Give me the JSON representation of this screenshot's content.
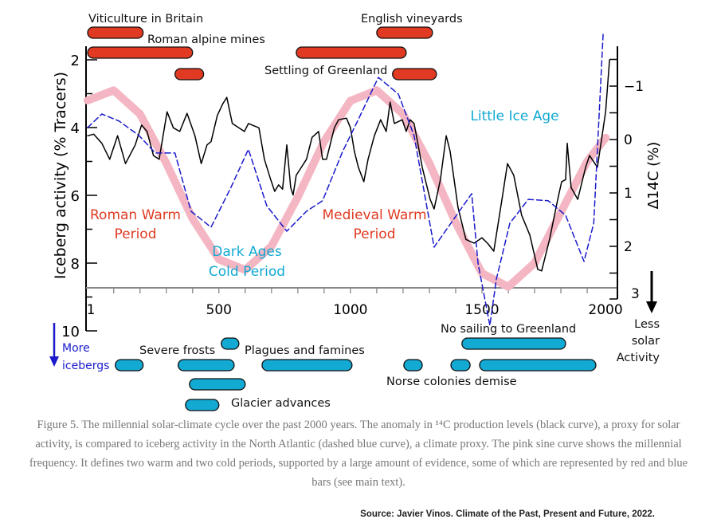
{
  "chart_data": {
    "type": "line",
    "xlabel": "",
    "ylabel_left": "Iceberg activity (% Tracers)",
    "ylabel_right": "Δ14C (%)",
    "xlim": [
      1,
      2000
    ],
    "ylim_left": [
      10,
      1.6
    ],
    "ylim_right": [
      3,
      -1.75
    ],
    "x_ticks": [
      "1",
      "500",
      "1000",
      "1500",
      "2000"
    ],
    "y_left_ticks": [
      "2",
      "4",
      "6",
      "8",
      "10"
    ],
    "y_right_ticks": [
      "−1",
      "0",
      "1",
      "2",
      "3"
    ],
    "grid": false,
    "colors": {
      "solar": "#000000",
      "iceberg": "#1a1acc",
      "sine": "#f4b6c2",
      "warm": "#e03a22",
      "cold": "#12a9d3"
    },
    "series": [
      {
        "axis": "right",
        "style": "solid-black",
        "x": [
          1,
          24,
          55,
          85,
          115,
          145,
          182,
          206,
          227,
          251,
          273,
          303,
          327,
          351,
          379,
          409,
          433,
          455,
          470,
          494,
          515,
          530,
          551,
          597,
          612,
          652,
          673,
          697,
          712,
          727,
          742,
          758,
          773,
          782,
          794,
          833,
          854,
          879,
          894,
          909,
          939,
          955,
          985,
          1000,
          1015,
          1030,
          1051,
          1067,
          1091,
          1115,
          1136,
          1151,
          1167,
          1197,
          1212,
          1227,
          1242,
          1273,
          1303,
          1318,
          1342,
          1364,
          1379,
          1409,
          1439,
          1470,
          1500,
          1521,
          1545,
          1576,
          1597,
          1621,
          1651,
          1682,
          1712,
          1727,
          1757,
          1788,
          1803,
          1818,
          1824,
          1839,
          1864,
          1894,
          1909,
          1939,
          1970,
          1985
        ],
        "y": [
          -0.07,
          -0.1,
          0.07,
          0.37,
          -0.07,
          0.45,
          0.1,
          -0.27,
          -0.15,
          0.3,
          0.37,
          -0.52,
          -0.22,
          -0.15,
          -0.49,
          -0.07,
          0.45,
          0.1,
          0.04,
          -0.45,
          -0.67,
          -0.79,
          -0.3,
          -0.15,
          -0.3,
          -0.22,
          0.37,
          0.75,
          0.97,
          0.85,
          0.93,
          0.1,
          0.9,
          1.04,
          0.67,
          0.37,
          -0.04,
          -0.15,
          0.37,
          0.37,
          -0.22,
          -0.37,
          -0.4,
          -0.22,
          0.22,
          0.52,
          0.79,
          0.37,
          -0.07,
          -0.37,
          -0.15,
          -0.7,
          -0.3,
          -0.37,
          -0.15,
          -0.37,
          -0.3,
          0.52,
          1.12,
          1.3,
          0.75,
          -0.07,
          0.22,
          1.27,
          1.87,
          1.94,
          1.84,
          1.94,
          2.09,
          1.12,
          0.45,
          0.67,
          1.42,
          1.79,
          2.43,
          2.46,
          1.87,
          1.12,
          0.79,
          0.75,
          0.07,
          0.9,
          1.12,
          0.52,
          0.3,
          0.52,
          -0.52,
          -1.49
        ]
      },
      {
        "axis": "left",
        "style": "dashed-blue",
        "x": [
          1,
          55,
          121,
          197,
          258,
          333,
          394,
          470,
          546,
          612,
          682,
          758,
          833,
          894,
          970,
          1030,
          1106,
          1182,
          1242,
          1318,
          1461,
          1485,
          1530,
          1555,
          1606,
          1676,
          1752,
          1818,
          1888,
          1925,
          1961
        ],
        "y": [
          4.0,
          3.6,
          3.81,
          4.24,
          4.75,
          4.75,
          6.47,
          6.94,
          5.76,
          4.64,
          6.31,
          7.06,
          6.47,
          6.16,
          4.71,
          3.76,
          2.52,
          3.01,
          4.24,
          7.53,
          5.95,
          8.0,
          9.84,
          8.47,
          6.82,
          6.12,
          6.16,
          6.59,
          7.95,
          6.82,
          1.18
        ]
      },
      {
        "axis": "left",
        "style": "thick-pink",
        "x": [
          1,
          100,
          200,
          300,
          400,
          500,
          600,
          700,
          800,
          900,
          1000,
          1100,
          1200,
          1300,
          1400,
          1500,
          1600,
          1700,
          1800,
          1900,
          1970
        ],
        "y": [
          3.2,
          2.9,
          3.6,
          5.05,
          6.69,
          7.89,
          8.2,
          7.5,
          6.05,
          4.41,
          3.21,
          2.9,
          3.6,
          5.05,
          6.8,
          8.3,
          8.7,
          8.0,
          6.5,
          5.0,
          4.3
        ]
      }
    ],
    "red_bars": [
      {
        "start": 1,
        "end": 212
      },
      {
        "start": 1,
        "end": 400
      },
      {
        "start": 333,
        "end": 442
      },
      {
        "start": 794,
        "end": 1212
      },
      {
        "start": 1100,
        "end": 1312
      },
      {
        "start": 1160,
        "end": 1327
      }
    ],
    "blue_bars": [
      {
        "start": 106,
        "end": 212
      },
      {
        "start": 345,
        "end": 558
      },
      {
        "start": 664,
        "end": 1006
      },
      {
        "start": 1203,
        "end": 1273
      },
      {
        "start": 1382,
        "end": 1455
      },
      {
        "start": 1491,
        "end": 1933
      },
      {
        "start": 509,
        "end": 576
      },
      {
        "start": 1424,
        "end": 1818
      },
      {
        "start": 388,
        "end": 600
      },
      {
        "start": 373,
        "end": 500
      }
    ],
    "annotations": {
      "viticulture": "Viticulture in Britain",
      "roman_mines": "Roman alpine mines",
      "english_vineyards": "English vineyards",
      "settling_greenland": "Settling of Greenland",
      "roman_warm_1": "Roman Warm",
      "roman_warm_2": "Period",
      "dark_ages_1": "Dark Ages",
      "dark_ages_2": "Cold Period",
      "medieval_1": "Medieval Warm",
      "medieval_2": "Period",
      "little_ice_age": "Little Ice Age",
      "more_1": "More",
      "more_2": "icebergs",
      "severe_frosts": "Severe frosts",
      "plagues": "Plagues and famines",
      "glacier": "Glacier advances",
      "no_sailing": "No sailing to Greenland",
      "norse": "Norse colonies demise",
      "less_1": "Less",
      "less_2": "solar",
      "less_3": "Activity"
    }
  },
  "caption": "Figure 5. The millennial solar-climate cycle over the past 2000 years. The anomaly in ¹⁴C production levels (black curve), a proxy for solar activity, is compared to iceberg activity in the North Atlantic (dashed blue curve), a climate proxy. The pink sine curve shows the millennial frequency. It defines two warm and two cold periods, supported by a large amount of evidence, some of which are represented by red and blue bars (see main text).",
  "source": "Source: Javier Vinos.  Climate of the Past, Present and Future, 2022."
}
